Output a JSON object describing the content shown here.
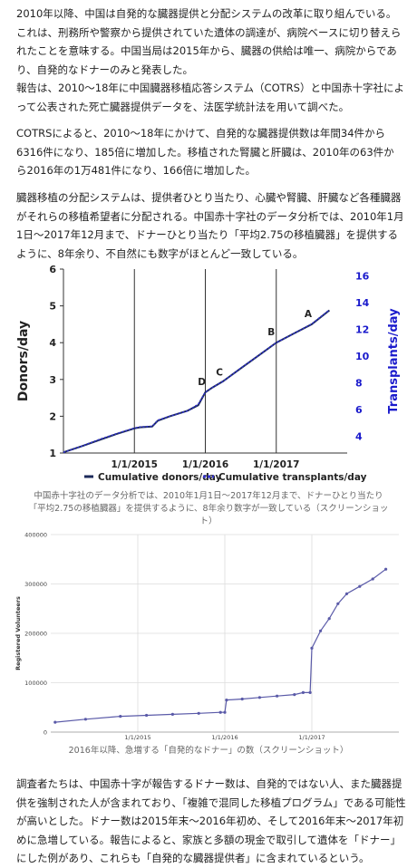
{
  "paragraphs": {
    "p1": "2010年以降、中国は自発的な臓器提供と分配システムの改革に取り組んでいる。これは、刑務所や警察から提供されていた遺体の調達が、病院ベースに切り替えられたことを意味する。中国当局は2015年から、臓器の供給は唯一、病院からであり、自発的なドナーのみと発表した。",
    "p2": "報告は、2010～18年に中国臓器移植応答システム（COTRS）と中国赤十字社によって公表された死亡臓器提供データを、法医学統計法を用いて調べた。",
    "p3": "COTRSによると、2010～18年にかけて、自発的な臓器提供数は年間34件から6316件になり、185倍に増加した。移植された腎臓と肝臓は、2010年の63件から2016年の1万481件になり、166倍に増加した。",
    "p4": "臓器移植の分配システムは、提供者ひとり当たり、心臓や腎臓、肝臓など各種臓器がそれらの移植希望者に分配される。中国赤十字社のデータ分析では、2010年1月1日～2017年12月まで、ドナーひとり当たり「平均2.75の移植臓器」を提供するように、8年余り、不自然にも数字がほとんど一致している。",
    "p5": "調査者たちは、中国赤十字が報告するドナー数は、自発的ではない人、また臓器提供を強制された人が含まれており、「複雑で混同した移植プログラム」である可能性が高いとした。ドナー数は2015年末～2016年初め、そして2016年末～2017年初めに急増している。報告によると、家族と多額の現金で取引して遺体を「ドナー」にした例があり、これらも「自発的な臓器提供者」に含まれているという。"
  },
  "chart_data": [
    {
      "type": "line",
      "ylabel": "Donors/day",
      "y2label": "Transplants/day",
      "ylim": [
        1,
        6
      ],
      "y2lim": [
        2.75,
        16.5
      ],
      "yticks": [
        "1",
        "2",
        "3",
        "4",
        "5",
        "6"
      ],
      "y2ticks": [
        "4",
        "6",
        "8",
        "10",
        "12",
        "14",
        "16"
      ],
      "xticks": [
        "1/1/2015",
        "1/1/2016",
        "1/1/2017"
      ],
      "xlim": [
        2014.0,
        2018.0
      ],
      "series": [
        {
          "name": "Cumulative donors/day",
          "color": "#1c2a5a",
          "style": "solid",
          "x": [
            2014.0,
            2014.25,
            2014.5,
            2014.75,
            2015.0,
            2015.08,
            2015.25,
            2015.33,
            2015.5,
            2015.75,
            2015.9,
            2016.0,
            2016.1,
            2016.25,
            2016.5,
            2016.75,
            2017.0,
            2017.25,
            2017.5,
            2017.75
          ],
          "values": [
            1.02,
            1.18,
            1.35,
            1.52,
            1.67,
            1.7,
            1.72,
            1.88,
            2.0,
            2.15,
            2.3,
            2.65,
            2.78,
            2.95,
            3.3,
            3.65,
            4.0,
            4.25,
            4.5,
            4.88
          ]
        },
        {
          "name": "Cumulative transplants/day",
          "color": "#3333cc",
          "style": "dotted",
          "x": [
            2014.0,
            2014.25,
            2014.5,
            2014.75,
            2015.0,
            2015.08,
            2015.25,
            2015.33,
            2015.5,
            2015.75,
            2015.9,
            2016.0,
            2016.1,
            2016.25,
            2016.5,
            2016.75,
            2017.0,
            2017.25,
            2017.5,
            2017.75
          ],
          "values": [
            2.8,
            3.25,
            3.75,
            4.2,
            4.62,
            4.7,
            4.75,
            5.2,
            5.5,
            5.9,
            6.4,
            7.3,
            7.65,
            8.1,
            9.1,
            10.05,
            11.0,
            11.7,
            12.4,
            13.45
          ]
        }
      ],
      "annotations": [
        "D",
        "C",
        "B",
        "A"
      ],
      "annotation_points": [
        {
          "label": "D",
          "x": 2015.95,
          "y": 2.85
        },
        {
          "label": "C",
          "x": 2016.2,
          "y": 3.1
        },
        {
          "label": "B",
          "x": 2016.93,
          "y": 4.2
        },
        {
          "label": "A",
          "x": 2017.45,
          "y": 4.7
        }
      ],
      "legend_position": "bottom",
      "grid": false
    },
    {
      "type": "line",
      "ylabel": "Registered Volunteers",
      "ylim": [
        0,
        400000
      ],
      "yticks": [
        "0",
        "100000",
        "200000",
        "300000",
        "400000"
      ],
      "xticks": [
        "1/1/2015",
        "1/1/2016",
        "1/1/2017"
      ],
      "xlim": [
        2014.0,
        2018.0
      ],
      "grid": true,
      "series": [
        {
          "color": "#5a5aa8",
          "x": [
            2014.05,
            2014.4,
            2014.8,
            2015.1,
            2015.4,
            2015.7,
            2015.95,
            2016.0,
            2016.02,
            2016.2,
            2016.4,
            2016.6,
            2016.8,
            2016.9,
            2016.98,
            2017.0,
            2017.1,
            2017.2,
            2017.3,
            2017.4,
            2017.55,
            2017.7,
            2017.85
          ],
          "values": [
            20000,
            26000,
            32000,
            34000,
            36000,
            38000,
            40000,
            40000,
            65000,
            67000,
            70000,
            73000,
            76000,
            80000,
            80000,
            170000,
            205000,
            230000,
            260000,
            280000,
            295000,
            310000,
            330000
          ]
        }
      ]
    }
  ],
  "captions": {
    "chart1": "中国赤十字社のデータ分析では、2010年1月1日～2017年12月まで、ドナーひとり当たり「平均2.75の移植臓器」を提供するように、8年余り数字が一致している（スクリーンショット）",
    "chart2": "2016年以降、急増する「自発的なドナー」の数（スクリーンショット）"
  }
}
